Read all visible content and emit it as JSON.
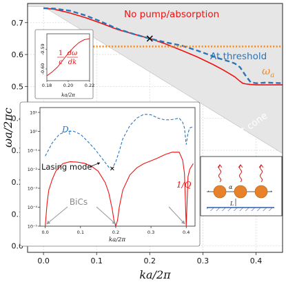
{
  "chart_data": [
    {
      "type": "line",
      "xlabel": "ka/2π",
      "ylabel": "ωa/2πc",
      "xlim": [
        -0.03,
        0.45
      ],
      "ylim": [
        -0.02,
        0.76
      ],
      "xticks": [
        "0.0",
        "0.1",
        "0.2",
        "0.3",
        "0.4"
      ],
      "yticks": [
        "0.0",
        "0.1",
        "0.2",
        "0.3",
        "0.4",
        "0.5",
        "0.6",
        "0.7"
      ],
      "grid": true,
      "series": [
        {
          "name": "No pump/absorption",
          "color": "#ee1111",
          "x": [
            0.0,
            0.02,
            0.05,
            0.08,
            0.11,
            0.14,
            0.17,
            0.2,
            0.23,
            0.26,
            0.29,
            0.32,
            0.34,
            0.36,
            0.37,
            0.375,
            0.38,
            0.39,
            0.4,
            0.43,
            0.45
          ],
          "y": [
            0.745,
            0.742,
            0.73,
            0.715,
            0.697,
            0.678,
            0.664,
            0.65,
            0.633,
            0.613,
            0.592,
            0.568,
            0.55,
            0.53,
            0.516,
            0.51,
            0.508,
            0.506,
            0.505,
            0.505,
            0.505
          ]
        },
        {
          "name": "At threshold",
          "color": "#2a74b8",
          "dashed": true,
          "x": [
            0.0,
            0.02,
            0.05,
            0.08,
            0.11,
            0.14,
            0.17,
            0.2,
            0.23,
            0.26,
            0.29,
            0.31,
            0.33,
            0.35,
            0.36,
            0.37,
            0.38,
            0.39,
            0.4,
            0.42,
            0.45
          ],
          "y": [
            0.745,
            0.744,
            0.737,
            0.722,
            0.702,
            0.68,
            0.664,
            0.65,
            0.638,
            0.628,
            0.612,
            0.6,
            0.588,
            0.578,
            0.572,
            0.56,
            0.535,
            0.513,
            0.51,
            0.512,
            0.51
          ]
        },
        {
          "name": "ω_a",
          "color": "#f08a24",
          "dotted": true,
          "x": [
            0.0,
            0.45
          ],
          "y": [
            0.625,
            0.625
          ]
        }
      ],
      "light_cone_boundary": {
        "x": [
          -0.03,
          0.0,
          0.45
        ],
        "y": [
          0.75,
          0.75,
          0.29
        ]
      },
      "annotations": {
        "no_pump": "No pump/absorption",
        "threshold": "At threshold",
        "omega_a": "ω",
        "omega_a_sub": "a",
        "light_cone": "Light cone"
      },
      "marker": {
        "x": 0.2,
        "y": 0.65
      }
    },
    {
      "type": "line",
      "xlabel": "ka/2π",
      "xlim": [
        0.18,
        0.22
      ],
      "ylim": [
        -0.606,
        -0.582
      ],
      "xticks": [
        "0.18",
        "0.20",
        "0.22"
      ],
      "yticks": [
        "-0.59",
        "-0.60"
      ],
      "label": "1/c dω/dk",
      "label_parts": {
        "one": "1",
        "c": "c",
        "dw": "dω",
        "dk": "dk"
      },
      "series": [
        {
          "color": "#ee1111",
          "x": [
            0.18,
            0.185,
            0.19,
            0.195,
            0.2,
            0.205,
            0.21,
            0.215,
            0.22
          ],
          "y": [
            -0.6035,
            -0.6015,
            -0.599,
            -0.5955,
            -0.592,
            -0.589,
            -0.5865,
            -0.585,
            -0.5845
          ]
        }
      ]
    },
    {
      "type": "line",
      "yscale": "log",
      "xlabel": "ka/2π",
      "xlim": [
        -0.015,
        0.425
      ],
      "ylim": [
        1e-05,
        18
      ],
      "xticks": [
        "0.0",
        "0.1",
        "0.2",
        "0.3",
        "0.4"
      ],
      "yticks": [
        "10⁻⁵",
        "10⁻⁴",
        "10⁻³",
        "10⁻²",
        "10⁻¹",
        "10⁰",
        "10¹"
      ],
      "series": [
        {
          "name": "D_t",
          "label": "D",
          "label_sub": "t",
          "color": "#2a74b8",
          "dashed": true,
          "x": [
            0.0,
            0.02,
            0.04,
            0.06,
            0.08,
            0.1,
            0.12,
            0.14,
            0.16,
            0.18,
            0.19,
            0.2,
            0.21,
            0.22,
            0.24,
            0.26,
            0.28,
            0.3,
            0.32,
            0.34,
            0.36,
            0.38,
            0.39,
            0.395,
            0.4,
            0.405,
            0.41,
            0.42
          ],
          "y": [
            0.05,
            0.25,
            0.7,
            1.0,
            1.02,
            0.7,
            0.3,
            0.12,
            0.04,
            0.013,
            0.011,
            0.025,
            0.09,
            0.4,
            2.0,
            5.0,
            8.0,
            7.5,
            5.0,
            4.0,
            4.2,
            5.0,
            3.0,
            1.5,
            0.2,
            0.8,
            1.5,
            1.8
          ]
        },
        {
          "name": "1/Q",
          "label": "1/Q",
          "color": "#ee1111",
          "x": [
            0.0,
            0.005,
            0.01,
            0.02,
            0.03,
            0.05,
            0.07,
            0.09,
            0.11,
            0.13,
            0.15,
            0.17,
            0.18,
            0.19,
            0.195,
            0.2,
            0.205,
            0.21,
            0.22,
            0.24,
            0.26,
            0.28,
            0.3,
            0.32,
            0.34,
            0.36,
            0.38,
            0.39,
            0.395,
            0.4,
            0.405,
            0.41,
            0.42
          ],
          "y": [
            1e-05,
            0.00015,
            0.0008,
            0.003,
            0.008,
            0.02,
            0.025,
            0.024,
            0.021,
            0.015,
            0.008,
            0.002,
            0.0006,
            8e-05,
            2e-05,
            1e-05,
            2e-05,
            0.0001,
            0.0008,
            0.005,
            0.012,
            0.02,
            0.028,
            0.04,
            0.06,
            0.08,
            0.08,
            0.03,
            0.006,
            1e-05,
            0.004,
            0.01,
            0.02
          ]
        }
      ],
      "annotations": {
        "lasing_mode": "Lasing mode",
        "bics": "BiCs"
      },
      "marker": {
        "x": 0.19,
        "y": 0.011
      },
      "bic_positions": [
        0.0,
        0.2,
        0.4
      ]
    }
  ],
  "schematic": {
    "alpha": "α",
    "L": "L",
    "dots": "·"
  }
}
